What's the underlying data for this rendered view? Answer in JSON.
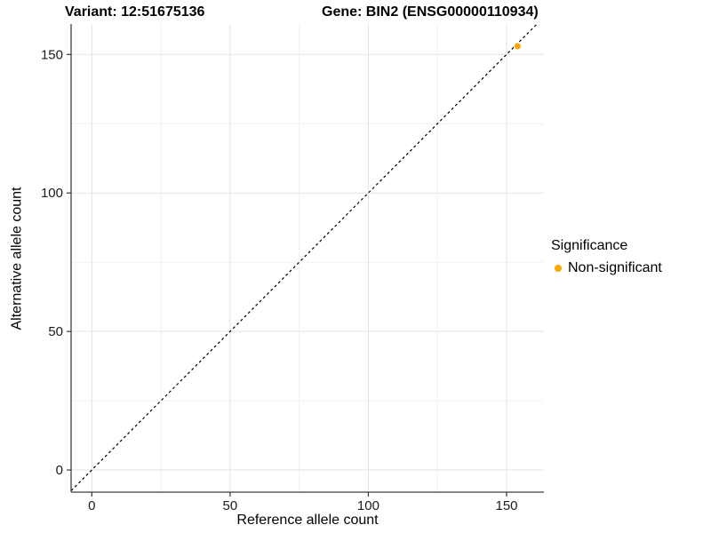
{
  "header": {
    "variant_title": "Variant: 12:51675136",
    "gene_title": "Gene: BIN2 (ENSG00000110934)"
  },
  "legend": {
    "title": "Significance",
    "items": [
      {
        "label": "Non-significant",
        "color": "#FFA500",
        "marker": "dot-icon"
      }
    ]
  },
  "chart_data": {
    "type": "scatter",
    "title": "",
    "xlabel": "Reference allele count",
    "ylabel": "Alternative allele count",
    "xlim": [
      -7.5,
      163.5
    ],
    "ylim": [
      -8,
      161
    ],
    "x_ticks": [
      0,
      50,
      100,
      150
    ],
    "y_ticks": [
      0,
      50,
      100,
      150
    ],
    "x_minor_gridlines": [
      25,
      75,
      125
    ],
    "y_minor_gridlines": [
      25,
      75,
      125
    ],
    "grid": "on",
    "legend_position": "right",
    "series": [
      {
        "name": "Non-significant",
        "color": "#FFA500",
        "points": [
          {
            "x": 154,
            "y": 153
          }
        ]
      }
    ],
    "reference_line": {
      "kind": "abline",
      "slope": 1,
      "intercept": 0,
      "style": "dashed",
      "color": "#000000"
    }
  },
  "colors": {
    "point_orange": "#FFA500",
    "grid_major": "#E3E3E3",
    "grid_minor": "#F1F1F1",
    "axis_line": "#3f3f3f",
    "tick_mark": "#333333",
    "tick_text": "#1a1a1a",
    "background": "#ffffff"
  }
}
